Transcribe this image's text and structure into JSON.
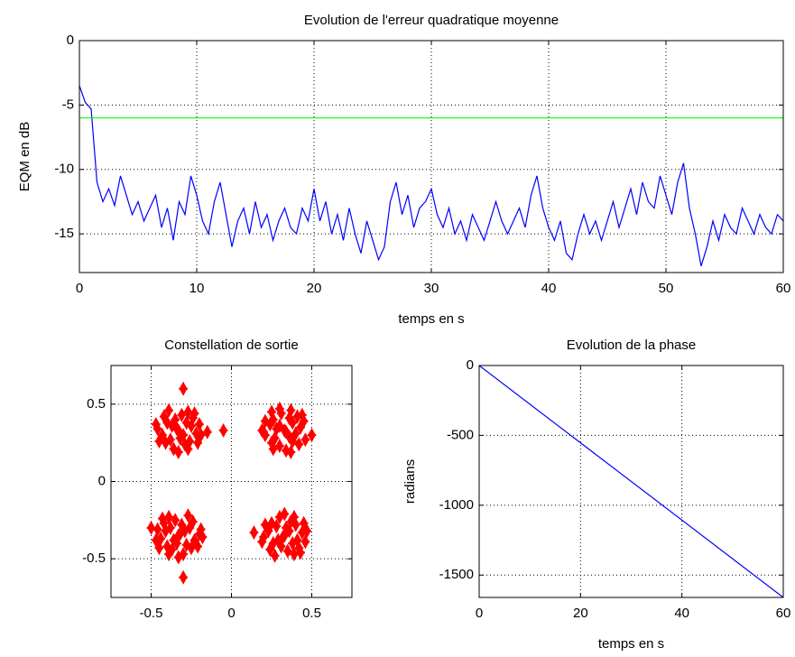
{
  "chart_data": [
    {
      "type": "line",
      "title": "Evolution de l'erreur quadratique moyenne",
      "x_label": "temps en s",
      "y_label": "EQM en dB",
      "xlim": [
        0,
        60
      ],
      "xticks": [
        0,
        10,
        20,
        30,
        40,
        50,
        60
      ],
      "ylim": [
        -18,
        0
      ],
      "yticks": [
        0,
        -5,
        -10,
        -15
      ],
      "grid": true,
      "series": [
        {
          "color": "#0000ff",
          "x": [
            0,
            0.5,
            1,
            1.5,
            2,
            2.5,
            3,
            3.5,
            4,
            4.5,
            5,
            5.5,
            6,
            6.5,
            7,
            7.5,
            8,
            8.5,
            9,
            9.5,
            10,
            10.5,
            11,
            11.5,
            12,
            12.5,
            13,
            13.5,
            14,
            14.5,
            15,
            15.5,
            16,
            16.5,
            17,
            17.5,
            18,
            18.5,
            19,
            19.5,
            20,
            20.5,
            21,
            21.5,
            22,
            22.5,
            23,
            23.5,
            24,
            24.5,
            25,
            25.5,
            26,
            26.5,
            27,
            27.5,
            28,
            28.5,
            29,
            29.5,
            30,
            30.5,
            31,
            31.5,
            32,
            32.5,
            33,
            33.5,
            34,
            34.5,
            35,
            35.5,
            36,
            36.5,
            37,
            37.5,
            38,
            38.5,
            39,
            39.5,
            40,
            40.5,
            41,
            41.5,
            42,
            42.5,
            43,
            43.5,
            44,
            44.5,
            45,
            45.5,
            46,
            46.5,
            47,
            47.5,
            48,
            48.5,
            49,
            49.5,
            50,
            50.5,
            51,
            51.5,
            52,
            52.5,
            53,
            53.5,
            54,
            54.5,
            55,
            55.5,
            56,
            56.5,
            57,
            57.5,
            58,
            58.5,
            59,
            59.5,
            60
          ],
          "values": [
            -3.5,
            -4.8,
            -5.3,
            -11,
            -12.5,
            -11.5,
            -12.8,
            -10.5,
            -12,
            -13.5,
            -12.5,
            -14,
            -13,
            -12,
            -14.5,
            -13,
            -15.5,
            -12.5,
            -13.5,
            -10.5,
            -12,
            -14,
            -15,
            -12.5,
            -11,
            -13.5,
            -16,
            -14,
            -13,
            -15,
            -12.5,
            -14.5,
            -13.5,
            -15.5,
            -14,
            -13,
            -14.5,
            -15,
            -13,
            -14,
            -11.5,
            -14,
            -12.5,
            -15,
            -13.5,
            -15.5,
            -13,
            -15,
            -16.5,
            -14,
            -15.5,
            -17,
            -16,
            -12.5,
            -11,
            -13.5,
            -12,
            -14.5,
            -13,
            -12.5,
            -11.5,
            -13.5,
            -14.5,
            -13,
            -15,
            -14,
            -15.5,
            -13.5,
            -14.5,
            -15.5,
            -14,
            -12.5,
            -14,
            -15,
            -14,
            -13,
            -14.5,
            -12,
            -10.5,
            -13,
            -14.5,
            -15.5,
            -14,
            -16.5,
            -17,
            -15,
            -13.5,
            -15,
            -14,
            -15.5,
            -14,
            -12.5,
            -14.5,
            -13,
            -11.5,
            -13.5,
            -11,
            -12.5,
            -13,
            -10.5,
            -12,
            -13.5,
            -11,
            -9.5,
            -13,
            -15,
            -17.5,
            -16,
            -14,
            -15.5,
            -13.5,
            -14.5,
            -15,
            -13,
            -14,
            -15,
            -13.5,
            -14.5,
            -15,
            -13.5,
            -14
          ]
        },
        {
          "color": "#00ff00",
          "x": [
            0,
            60
          ],
          "values": [
            -6,
            -6
          ]
        }
      ]
    },
    {
      "type": "scatter",
      "title": "Constellation de sortie",
      "xlim": [
        -0.75,
        0.75
      ],
      "xticks": [
        -0.5,
        0,
        0.5
      ],
      "ylim": [
        -0.75,
        0.75
      ],
      "yticks": [
        0.5,
        0,
        -0.5
      ],
      "grid": true,
      "series": [
        {
          "color": "#ff0000",
          "x": [
            -0.33,
            -0.25,
            -0.4,
            -0.29,
            -0.38,
            -0.22,
            -0.43,
            -0.31,
            -0.36,
            -0.24,
            -0.42,
            -0.26,
            -0.41,
            -0.2,
            -0.46,
            -0.32,
            -0.28,
            -0.37,
            -0.3,
            -0.35,
            -0.21,
            -0.45,
            -0.27,
            -0.39,
            -0.23,
            -0.33,
            -0.19,
            -0.47,
            -0.34,
            -0.27,
            0.33,
            0.36,
            0.38,
            0.24,
            0.27,
            0.31,
            0.3,
            0.43,
            0.21,
            0.41,
            0.42,
            0.26,
            0.25,
            0.37,
            0.34,
            0.28,
            0.38,
            0.36,
            0.3,
            0.4,
            0.25,
            0.26,
            0.45,
            0.46,
            0.44,
            0.19,
            0.3,
            0.37,
            0.34,
            0.21,
            -0.33,
            -0.41,
            -0.26,
            -0.37,
            -0.28,
            -0.44,
            -0.23,
            -0.35,
            -0.3,
            -0.42,
            -0.24,
            -0.4,
            -0.25,
            -0.46,
            -0.2,
            -0.34,
            -0.38,
            -0.29,
            -0.36,
            -0.31,
            -0.45,
            -0.21,
            -0.39,
            -0.27,
            -0.43,
            -0.33,
            -0.47,
            -0.19,
            -0.32,
            -0.39,
            0.33,
            0.41,
            0.26,
            0.37,
            0.28,
            0.44,
            0.23,
            0.35,
            0.3,
            0.42,
            0.24,
            0.4,
            0.25,
            0.46,
            0.2,
            0.34,
            0.38,
            0.29,
            0.36,
            0.31,
            0.45,
            0.21,
            0.39,
            0.27,
            0.43,
            0.33,
            0.47,
            0.19,
            0.32,
            0.39,
            -0.15,
            -0.05,
            -0.3,
            0.14,
            -0.5,
            -0.3,
            0.5,
            -0.18,
            0.2
          ],
          "values": [
            0.33,
            0.36,
            0.38,
            0.24,
            0.27,
            0.31,
            0.3,
            0.43,
            0.21,
            0.41,
            0.42,
            0.26,
            0.25,
            0.37,
            0.34,
            0.28,
            0.38,
            0.36,
            0.3,
            0.4,
            0.25,
            0.26,
            0.45,
            0.46,
            0.44,
            0.19,
            0.3,
            0.37,
            0.34,
            0.21,
            0.33,
            0.41,
            0.26,
            0.37,
            0.28,
            0.44,
            0.23,
            0.35,
            0.3,
            0.42,
            0.24,
            0.4,
            0.25,
            0.46,
            0.2,
            0.34,
            0.38,
            0.29,
            0.36,
            0.31,
            0.45,
            0.21,
            0.39,
            0.27,
            0.43,
            0.33,
            0.47,
            0.19,
            0.32,
            0.39,
            -0.35,
            -0.32,
            -0.3,
            -0.44,
            -0.41,
            -0.37,
            -0.38,
            -0.25,
            -0.47,
            -0.27,
            -0.26,
            -0.42,
            -0.43,
            -0.31,
            -0.34,
            -0.4,
            -0.3,
            -0.32,
            -0.38,
            -0.28,
            -0.43,
            -0.42,
            -0.23,
            -0.22,
            -0.24,
            -0.49,
            -0.38,
            -0.31,
            -0.34,
            -0.47,
            -0.35,
            -0.38,
            -0.4,
            -0.26,
            -0.29,
            -0.33,
            -0.32,
            -0.45,
            -0.23,
            -0.43,
            -0.44,
            -0.28,
            -0.27,
            -0.39,
            -0.36,
            -0.3,
            -0.4,
            -0.38,
            -0.32,
            -0.42,
            -0.27,
            -0.28,
            -0.47,
            -0.48,
            -0.46,
            -0.21,
            -0.32,
            -0.39,
            -0.36,
            -0.23,
            0.32,
            0.33,
            0.6,
            -0.33,
            -0.3,
            -0.62,
            0.3,
            -0.36,
            0.32
          ]
        }
      ]
    },
    {
      "type": "line",
      "title": "Evolution de la phase",
      "x_label": "temps en s",
      "y_label": "radians",
      "xlim": [
        0,
        60
      ],
      "xticks": [
        0,
        20,
        40,
        60
      ],
      "ylim": [
        -1660,
        0
      ],
      "yticks": [
        0,
        -500,
        -1000,
        -1500
      ],
      "grid": true,
      "series": [
        {
          "color": "#0000ff",
          "x": [
            0,
            60
          ],
          "values": [
            0,
            -1660
          ]
        }
      ]
    }
  ]
}
